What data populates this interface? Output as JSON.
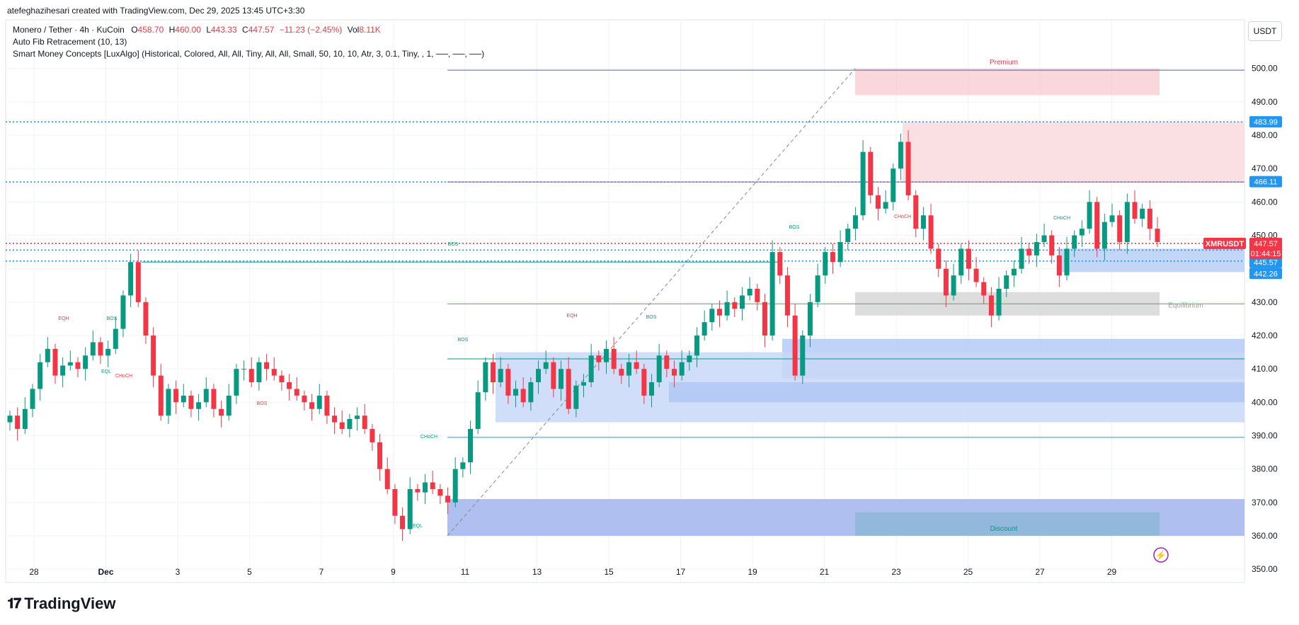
{
  "credit": "atefeghazihesari created with TradingView.com, Dec 29, 2025 13:45 UTC+3:30",
  "legend": {
    "symbol": "Monero / Tether · 4h · KuCoin",
    "o_label": "O",
    "o": "458.70",
    "h_label": "H",
    "h": "460.00",
    "l_label": "L",
    "l": "443.33",
    "c_label": "C",
    "c": "447.57",
    "change": "−11.23 (−2.45%)",
    "vol_label": "Vol",
    "vol": "8.11K",
    "ind1": "Auto Fib Retracement (10, 13)",
    "ind2": "Smart Money Concepts [LuxAlgo] (Historical, Colored, All, All, Tiny, All, All, Small, 50, 10, 10, Atr, 3, 0.1, Tiny, , 1, ──, ──, ──)"
  },
  "currency": "USDT",
  "brand": "TradingView",
  "colors": {
    "up": "#089981",
    "down": "#f23645",
    "blue": "#2962ff",
    "tag_blue": "#2196f3"
  },
  "chart_data": {
    "type": "candlestick",
    "symbol_tag": "XMRUSDT",
    "last_price": "447.57",
    "countdown": "01:44:15",
    "ylim": [
      346,
      501
    ],
    "y_ticks": [
      "500.00",
      "490.00",
      "480.00",
      "470.00",
      "460.00",
      "450.00",
      "440.00",
      "430.00",
      "420.00",
      "410.00",
      "400.00",
      "390.00",
      "380.00",
      "370.00",
      "360.00",
      "350.00"
    ],
    "x_ticks": [
      "28",
      "Dec",
      "3",
      "5",
      "7",
      "9",
      "11",
      "13",
      "15",
      "17",
      "19",
      "21",
      "23",
      "25",
      "27",
      "29"
    ],
    "price_tags": [
      "483.99",
      "466.11",
      "445.57",
      "442.26"
    ],
    "zone_labels": {
      "premium": "Premium",
      "equilibrium": "Equilibrium",
      "discount": "Discount"
    },
    "structure_labels": [
      "EQH",
      "BOS",
      "EQL",
      "CHoCH",
      "BOS",
      "CHoCH",
      "EQL",
      "BOS",
      "EQH",
      "BOS",
      "BOS",
      "BOS",
      "CHoCH",
      "CHoCH"
    ],
    "close_path": [
      396,
      392,
      398,
      404,
      412,
      416,
      408,
      411,
      412,
      410,
      414,
      418,
      414,
      416,
      422,
      432,
      442,
      430,
      420,
      408,
      396,
      404,
      400,
      402,
      398,
      400,
      404,
      398,
      396,
      402,
      410,
      410,
      406,
      412,
      410,
      408,
      406,
      404,
      402,
      400,
      398,
      402,
      396,
      394,
      392,
      395,
      396,
      392,
      388,
      380,
      374,
      366,
      362,
      374,
      373,
      376,
      374,
      372,
      370,
      380,
      382,
      392,
      403,
      412,
      406,
      410,
      402,
      404,
      400,
      406,
      410,
      412,
      404,
      410,
      398,
      405,
      406,
      414,
      412,
      416,
      410,
      408,
      412,
      410,
      402,
      406,
      414,
      410,
      408,
      412,
      414,
      420,
      424,
      428,
      426,
      430,
      428,
      432,
      434,
      430,
      420,
      445,
      438,
      426,
      408,
      420,
      430,
      438,
      445,
      442,
      448,
      452,
      456,
      475,
      462,
      458,
      460,
      470,
      478,
      462,
      452,
      456,
      446,
      440,
      432,
      438,
      446,
      440,
      436,
      432,
      426,
      434,
      438,
      440,
      446,
      444,
      448,
      450,
      444,
      438,
      446,
      450,
      452,
      460,
      446,
      454,
      456,
      448,
      460,
      455,
      458,
      452,
      448
    ]
  }
}
